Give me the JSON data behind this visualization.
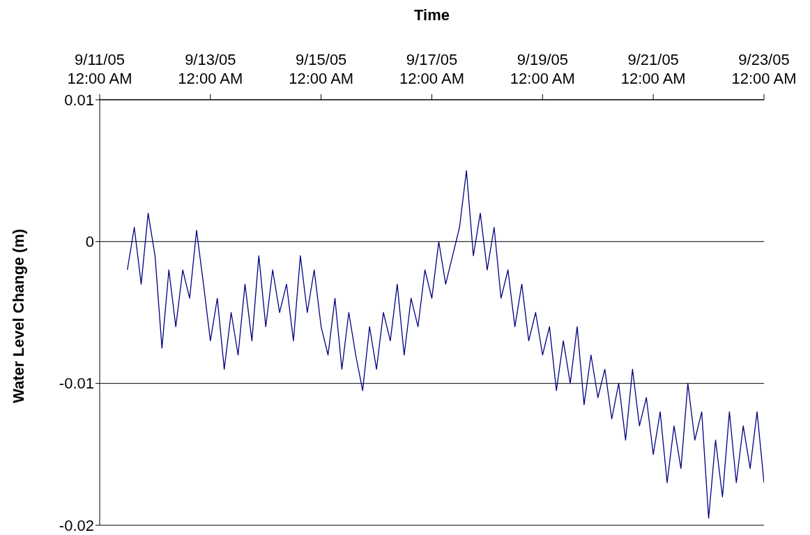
{
  "chart_data": {
    "type": "line",
    "xlabel": "Time",
    "ylabel": "Water Level Change (m)",
    "xlim": [
      "--09-11T00:00",
      "--09-23T00:00"
    ],
    "xticks": [
      {
        "value": "--09-11T00:00",
        "label": "9/11/05 12:00 AM"
      },
      {
        "value": "--09-13T00:00",
        "label": "9/13/05 12:00 AM"
      },
      {
        "value": "--09-15T00:00",
        "label": "9/15/05 12:00 AM"
      },
      {
        "value": "--09-17T00:00",
        "label": "9/17/05 12:00 AM"
      },
      {
        "value": "--09-19T00:00",
        "label": "9/19/05 12:00 AM"
      },
      {
        "value": "--09-21T00:00",
        "label": "9/21/05 12:00 AM"
      },
      {
        "value": "--09-23T00:00",
        "label": "9/23/05 12:00 AM"
      }
    ],
    "ylim": [
      -0.02,
      0.01
    ],
    "yticks": [
      -0.02,
      -0.01,
      0,
      0.01
    ],
    "grid": "y",
    "legend": false,
    "marker": "none",
    "line_style": "solid",
    "x": [
      "--09-11T12:00",
      "--09-11T15:00",
      "--09-11T18:00",
      "--09-11T21:00",
      "--09-12T00:00",
      "--09-12T03:00",
      "--09-12T06:00",
      "--09-12T09:00",
      "--09-12T12:00",
      "--09-12T15:00",
      "--09-12T18:00",
      "--09-12T21:00",
      "--09-13T00:00",
      "--09-13T03:00",
      "--09-13T06:00",
      "--09-13T09:00",
      "--09-13T12:00",
      "--09-13T15:00",
      "--09-13T18:00",
      "--09-13T21:00",
      "--09-14T00:00",
      "--09-14T03:00",
      "--09-14T06:00",
      "--09-14T09:00",
      "--09-14T12:00",
      "--09-14T15:00",
      "--09-14T18:00",
      "--09-14T21:00",
      "--09-15T00:00",
      "--09-15T03:00",
      "--09-15T06:00",
      "--09-15T09:00",
      "--09-15T12:00",
      "--09-15T15:00",
      "--09-15T18:00",
      "--09-15T21:00",
      "--09-16T00:00",
      "--09-16T03:00",
      "--09-16T06:00",
      "--09-16T09:00",
      "--09-16T12:00",
      "--09-16T15:00",
      "--09-16T18:00",
      "--09-16T21:00",
      "--09-17T00:00",
      "--09-17T03:00",
      "--09-17T06:00",
      "--09-17T09:00",
      "--09-17T12:00",
      "--09-17T15:00",
      "--09-17T18:00",
      "--09-17T21:00",
      "--09-18T00:00",
      "--09-18T03:00",
      "--09-18T06:00",
      "--09-18T09:00",
      "--09-18T12:00",
      "--09-18T15:00",
      "--09-18T18:00",
      "--09-18T21:00",
      "--09-19T00:00",
      "--09-19T03:00",
      "--09-19T06:00",
      "--09-19T09:00",
      "--09-19T12:00",
      "--09-19T15:00",
      "--09-19T18:00",
      "--09-19T21:00",
      "--09-20T00:00",
      "--09-20T03:00",
      "--09-20T06:00",
      "--09-20T09:00",
      "--09-20T12:00",
      "--09-20T15:00",
      "--09-20T18:00",
      "--09-20T21:00",
      "--09-21T00:00",
      "--09-21T03:00",
      "--09-21T06:00",
      "--09-21T09:00",
      "--09-21T12:00",
      "--09-21T15:00",
      "--09-21T18:00",
      "--09-21T21:00",
      "--09-22T00:00",
      "--09-22T03:00",
      "--09-22T06:00",
      "--09-22T09:00",
      "--09-22T12:00",
      "--09-22T15:00",
      "--09-22T18:00",
      "--09-22T21:00",
      "--09-23T00:00"
    ],
    "series": [
      {
        "color": "#000080",
        "values": [
          -0.002,
          0.001,
          -0.003,
          0.002,
          -0.001,
          -0.0075,
          -0.002,
          -0.006,
          -0.002,
          -0.004,
          0.0008,
          -0.003,
          -0.007,
          -0.004,
          -0.009,
          -0.005,
          -0.008,
          -0.003,
          -0.007,
          -0.001,
          -0.006,
          -0.002,
          -0.005,
          -0.003,
          -0.007,
          -0.001,
          -0.005,
          -0.002,
          -0.006,
          -0.008,
          -0.004,
          -0.009,
          -0.005,
          -0.008,
          -0.0105,
          -0.006,
          -0.009,
          -0.005,
          -0.007,
          -0.003,
          -0.008,
          -0.004,
          -0.006,
          -0.002,
          -0.004,
          0.0,
          -0.003,
          -0.001,
          0.001,
          0.005,
          -0.001,
          0.002,
          -0.002,
          0.001,
          -0.004,
          -0.002,
          -0.006,
          -0.003,
          -0.007,
          -0.005,
          -0.008,
          -0.006,
          -0.0105,
          -0.007,
          -0.01,
          -0.006,
          -0.0115,
          -0.008,
          -0.011,
          -0.009,
          -0.0125,
          -0.01,
          -0.014,
          -0.009,
          -0.013,
          -0.011,
          -0.015,
          -0.012,
          -0.017,
          -0.013,
          -0.016,
          -0.01,
          -0.014,
          -0.012,
          -0.0195,
          -0.014,
          -0.018,
          -0.012,
          -0.017,
          -0.013,
          -0.016,
          -0.012,
          -0.017
        ]
      }
    ]
  }
}
